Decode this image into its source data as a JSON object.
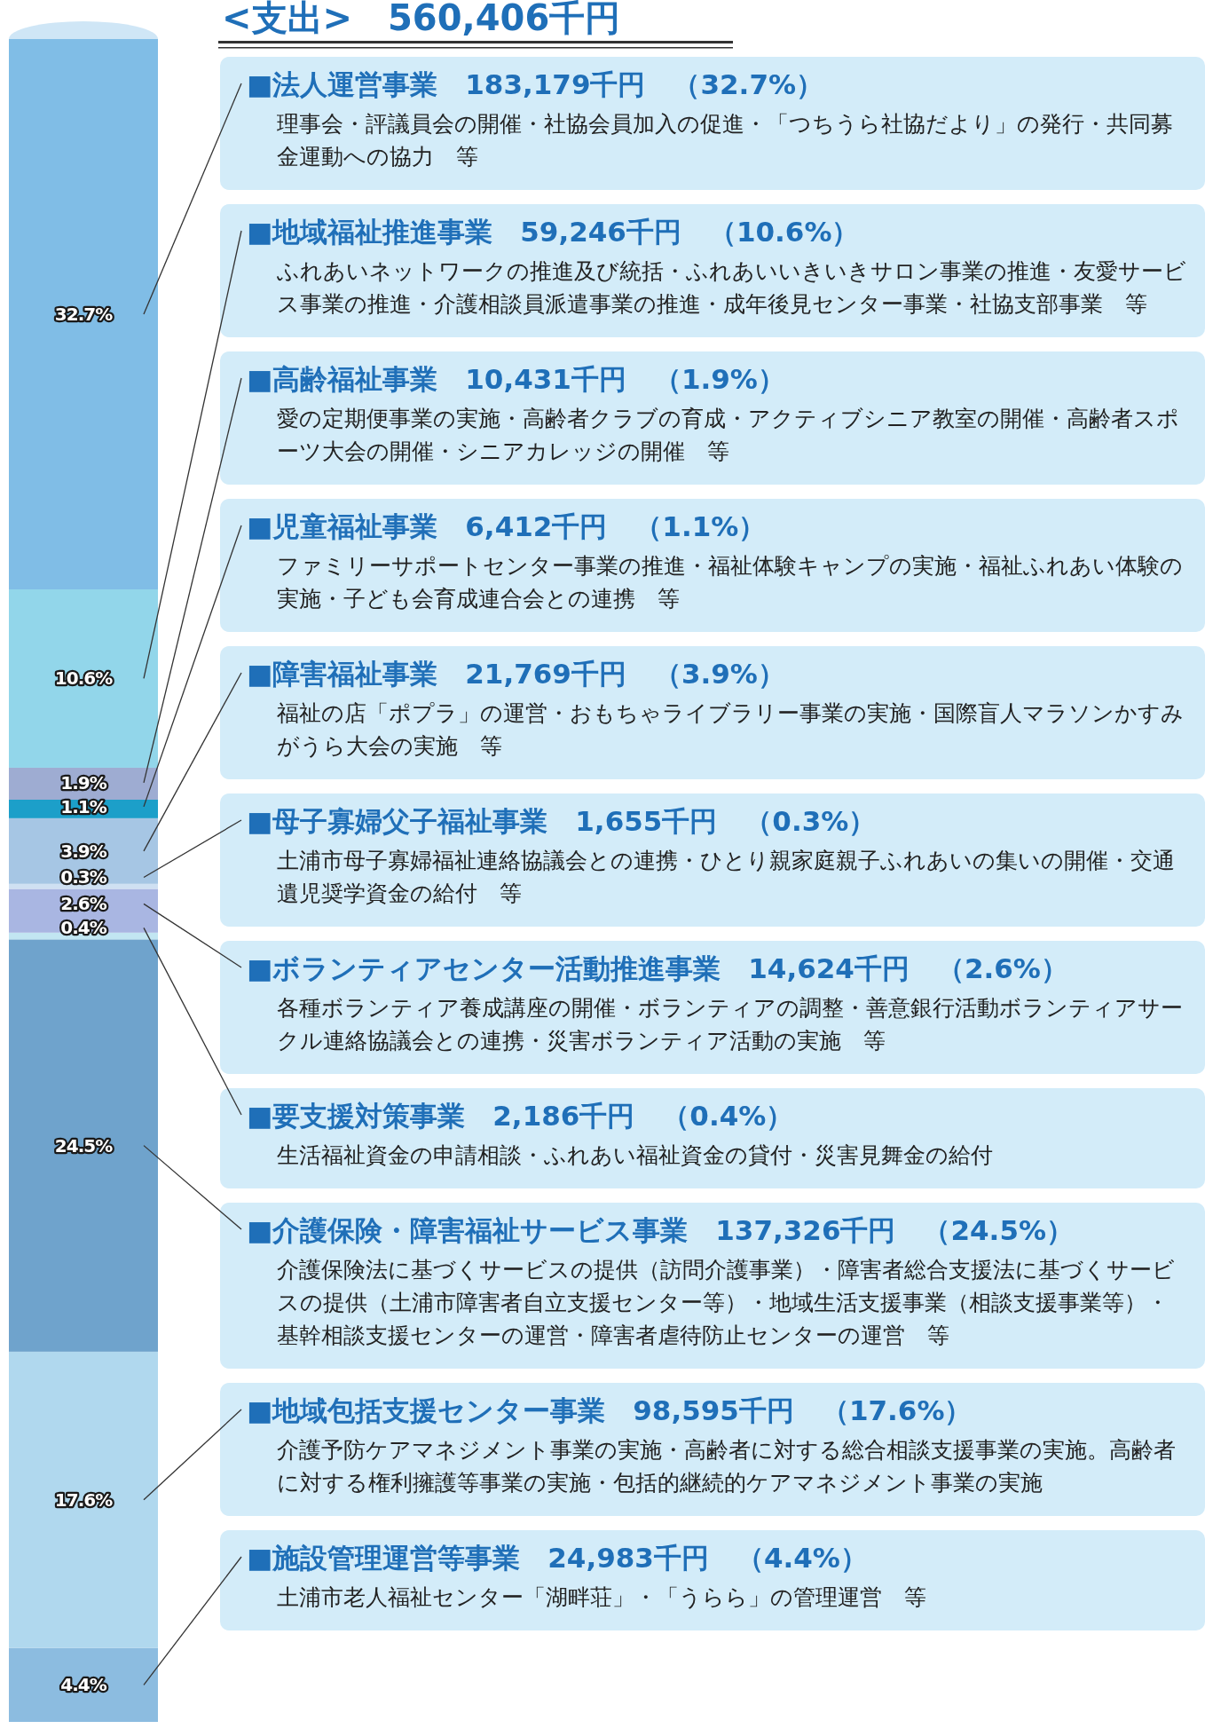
{
  "chart_data": {
    "type": "bar",
    "stacked": true,
    "title": "<支出>　560,406千円",
    "categories": [
      null
    ],
    "ylim": [
      0,
      100
    ],
    "series": [
      {
        "color": "#8cbce0",
        "values": [
          4.4
        ],
        "value_labels": [
          "4.4%"
        ]
      },
      {
        "color": "#b0d8ee",
        "values": [
          17.6
        ],
        "value_labels": [
          "17.6%"
        ]
      },
      {
        "color": "#6fa3cc",
        "values": [
          24.5
        ],
        "value_labels": [
          "24.5%"
        ]
      },
      {
        "color": "#c2e6f2",
        "values": [
          0.4
        ],
        "value_labels": [
          "0.4%"
        ]
      },
      {
        "color": "#a9b6e2",
        "values": [
          2.6
        ],
        "value_labels": [
          "2.6%"
        ]
      },
      {
        "color": "#cfe0f2",
        "values": [
          0.3
        ],
        "value_labels": [
          "0.3%"
        ]
      },
      {
        "color": "#a6c6e4",
        "values": [
          3.9
        ],
        "value_labels": [
          "3.9%"
        ]
      },
      {
        "color": "#1c9fc9",
        "values": [
          1.1
        ],
        "value_labels": [
          "1.1%"
        ]
      },
      {
        "color": "#9eacd2",
        "values": [
          1.9
        ],
        "value_labels": [
          "1.9%"
        ]
      },
      {
        "color": "#92d6ea",
        "values": [
          10.6
        ],
        "value_labels": [
          "10.6%"
        ]
      },
      {
        "color": "#80bde6",
        "values": [
          32.7
        ],
        "value_labels": [
          "32.7%"
        ]
      }
    ],
    "annotations": [
      "■法人運営事業　183,179千円　（32.7%）",
      "理事会・評議員会の開催・社協会員加入の促進・「つちうら社協だより」の発行・共同募金運動への協力　等",
      "■地域福祉推進事業　59,246千円　（10.6%）",
      "ふれあいネットワークの推進及び統括・ふれあいいきいきサロン事業の推進・友愛サービス事業の推進・介護相談員派遣事業の推進・成年後見センター事業・社協支部事業　等",
      "■高齢福祉事業　10,431千円　（1.9%）",
      "愛の定期便事業の実施・高齢者クラブの育成・アクティブシニア教室の開催・高齢者スポーツ大会の開催・シニアカレッジの開催　等",
      "■児童福祉事業　6,412千円　（1.1%）",
      "ファミリーサポートセンター事業の推進・福祉体験キャンプの実施・福祉ふれあい体験の実施・子ども会育成連合会との連携　等",
      "■障害福祉事業　21,769千円　（3.9%）",
      "福祉の店「ポプラ」の運営・おもちゃライブラリー事業の実施・国際盲人マラソンかすみがうら大会の実施　等",
      "■母子寡婦父子福祉事業　1,655千円　（0.3%）",
      "土浦市母子寡婦福祉連絡協議会との連携・ひとり親家庭親子ふれあいの集いの開催・交通遺児奨学資金の給付　等",
      "■ボランティアセンター活動推進事業　14,624千円　（2.6%）",
      "各種ボランティア養成講座の開催・ボランティアの調整・善意銀行活動ボランティアサークル連絡協議会との連携・災害ボランティア活動の実施　等",
      "■要支援対策事業　2,186千円　（0.4%）",
      "生活福祉資金の申請相談・ふれあい福祉資金の貸付・災害見舞金の給付",
      "■介護保険・障害福祉サービス事業　137,326千円　（24.5%）",
      "介護保険法に基づくサービスの提供（訪問介護事業）・障害者総合支援法に基づくサービスの提供（土浦市障害者自立支援センター等）・地域生活支援事業（相談支援事業等）・基幹相談支援センターの運営・障害者虐待防止センターの運営　等",
      "■地域包括支援センター事業　98,595千円　（17.6%）",
      "介護予防ケアマネジメント事業の実施・高齢者に対する総合相談支援事業の実施。高齢者に対する権利擁護等事業の実施・包括的継続的ケアマネジメント事業の実施",
      "■施設管理運営等事業　24,983千円　（4.4%）",
      "土浦市老人福祉センター「湖畔荘」・「うらら」の管理運営　等"
    ]
  }
}
